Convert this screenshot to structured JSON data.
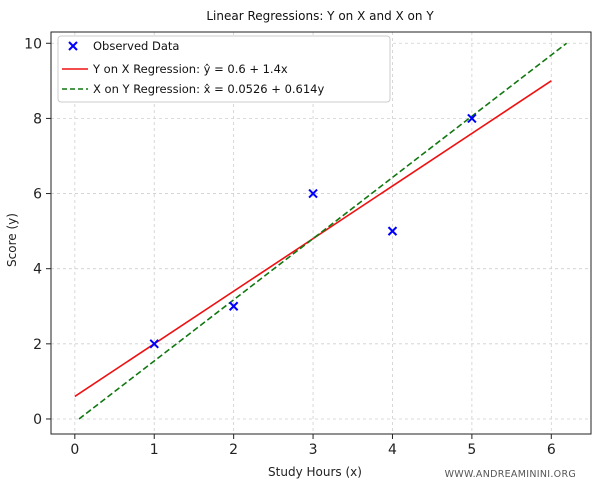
{
  "chart_data": {
    "type": "scatter",
    "title": "Linear Regressions: Y on X and X on Y",
    "xlabel": "Study Hours (x)",
    "ylabel": "Score (y)",
    "xlim": [
      -0.3,
      6.5
    ],
    "ylim": [
      -0.4,
      10.3
    ],
    "xticks": [
      0,
      1,
      2,
      3,
      4,
      5,
      6
    ],
    "yticks": [
      0,
      2,
      4,
      6,
      8,
      10
    ],
    "grid": true,
    "legend_position": "top-left",
    "colors": {
      "observed": "#0000ff",
      "y_on_x": "#ee1111",
      "x_on_y": "#117711"
    },
    "series": [
      {
        "name": "Observed Data",
        "kind": "scatter",
        "x": [
          1,
          2,
          3,
          4,
          5
        ],
        "y": [
          2,
          3,
          6,
          5,
          8
        ]
      },
      {
        "name": "Y on X Regression: ŷ = 0.6 + 1.4x",
        "kind": "line",
        "style": "solid",
        "x": [
          0,
          6
        ],
        "y": [
          0.6,
          9.0
        ]
      },
      {
        "name": "X on Y Regression: x̂ = 0.0526 + 0.614y",
        "kind": "line",
        "style": "dashed",
        "x": [
          0.0526,
          6.1926
        ],
        "y": [
          0,
          10
        ]
      }
    ]
  },
  "watermark": "WWW.ANDREAMININI.ORG"
}
